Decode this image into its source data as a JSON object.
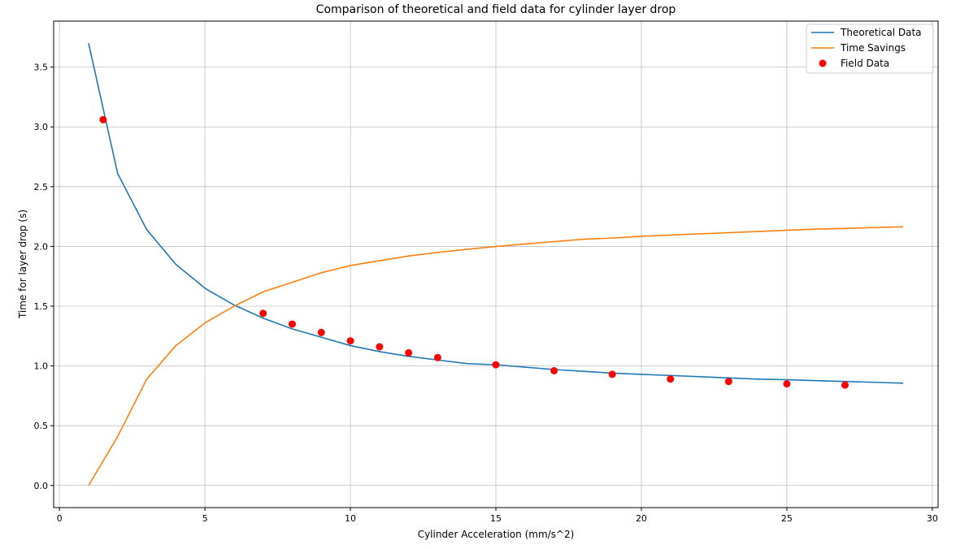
{
  "chart_data": {
    "type": "line",
    "title": "Comparison of theoretical and field data for cylinder layer drop",
    "xlabel": "Cylinder Acceleration (mm/s^2)",
    "ylabel": "Time for layer drop (s)",
    "xlim": [
      -0.2,
      30.2
    ],
    "ylim": [
      -0.185,
      3.885
    ],
    "xticks": [
      0,
      5,
      10,
      15,
      20,
      25,
      30
    ],
    "yticks": [
      0.0,
      0.5,
      1.0,
      1.5,
      2.0,
      2.5,
      3.0,
      3.5
    ],
    "grid": true,
    "legend_position": "top-right",
    "series": [
      {
        "name": "Theoretical Data",
        "kind": "line",
        "color": "#1f77b4",
        "x": [
          1,
          2,
          3,
          4,
          5,
          6,
          7,
          8,
          9,
          10,
          11,
          12,
          13,
          14,
          15,
          16,
          17,
          18,
          19,
          20,
          21,
          22,
          23,
          24,
          25,
          26,
          27,
          28,
          29
        ],
        "y": [
          3.7,
          2.61,
          2.14,
          1.85,
          1.65,
          1.51,
          1.4,
          1.31,
          1.24,
          1.17,
          1.12,
          1.08,
          1.05,
          1.02,
          1.01,
          0.99,
          0.97,
          0.955,
          0.94,
          0.93,
          0.92,
          0.91,
          0.9,
          0.89,
          0.885,
          0.877,
          0.87,
          0.863,
          0.856
        ]
      },
      {
        "name": "Time Savings",
        "kind": "line",
        "color": "#ff7f0e",
        "x": [
          1,
          2,
          3,
          4,
          5,
          6,
          7,
          8,
          9,
          10,
          11,
          12,
          13,
          14,
          15,
          16,
          17,
          18,
          19,
          20,
          21,
          22,
          23,
          24,
          25,
          26,
          27,
          28,
          29
        ],
        "y": [
          0.0,
          0.41,
          0.89,
          1.17,
          1.36,
          1.5,
          1.62,
          1.7,
          1.78,
          1.84,
          1.88,
          1.92,
          1.95,
          1.975,
          2.0,
          2.02,
          2.04,
          2.06,
          2.07,
          2.085,
          2.095,
          2.105,
          2.115,
          2.125,
          2.135,
          2.145,
          2.15,
          2.158,
          2.165
        ]
      },
      {
        "name": "Field Data",
        "kind": "scatter",
        "color": "#ff0000",
        "x": [
          1.5,
          7,
          8,
          9,
          10,
          11,
          12,
          13,
          15,
          17,
          19,
          21,
          23,
          25,
          27
        ],
        "y": [
          3.06,
          1.44,
          1.35,
          1.28,
          1.21,
          1.16,
          1.11,
          1.07,
          1.01,
          0.96,
          0.93,
          0.89,
          0.87,
          0.85,
          0.84
        ]
      }
    ]
  }
}
